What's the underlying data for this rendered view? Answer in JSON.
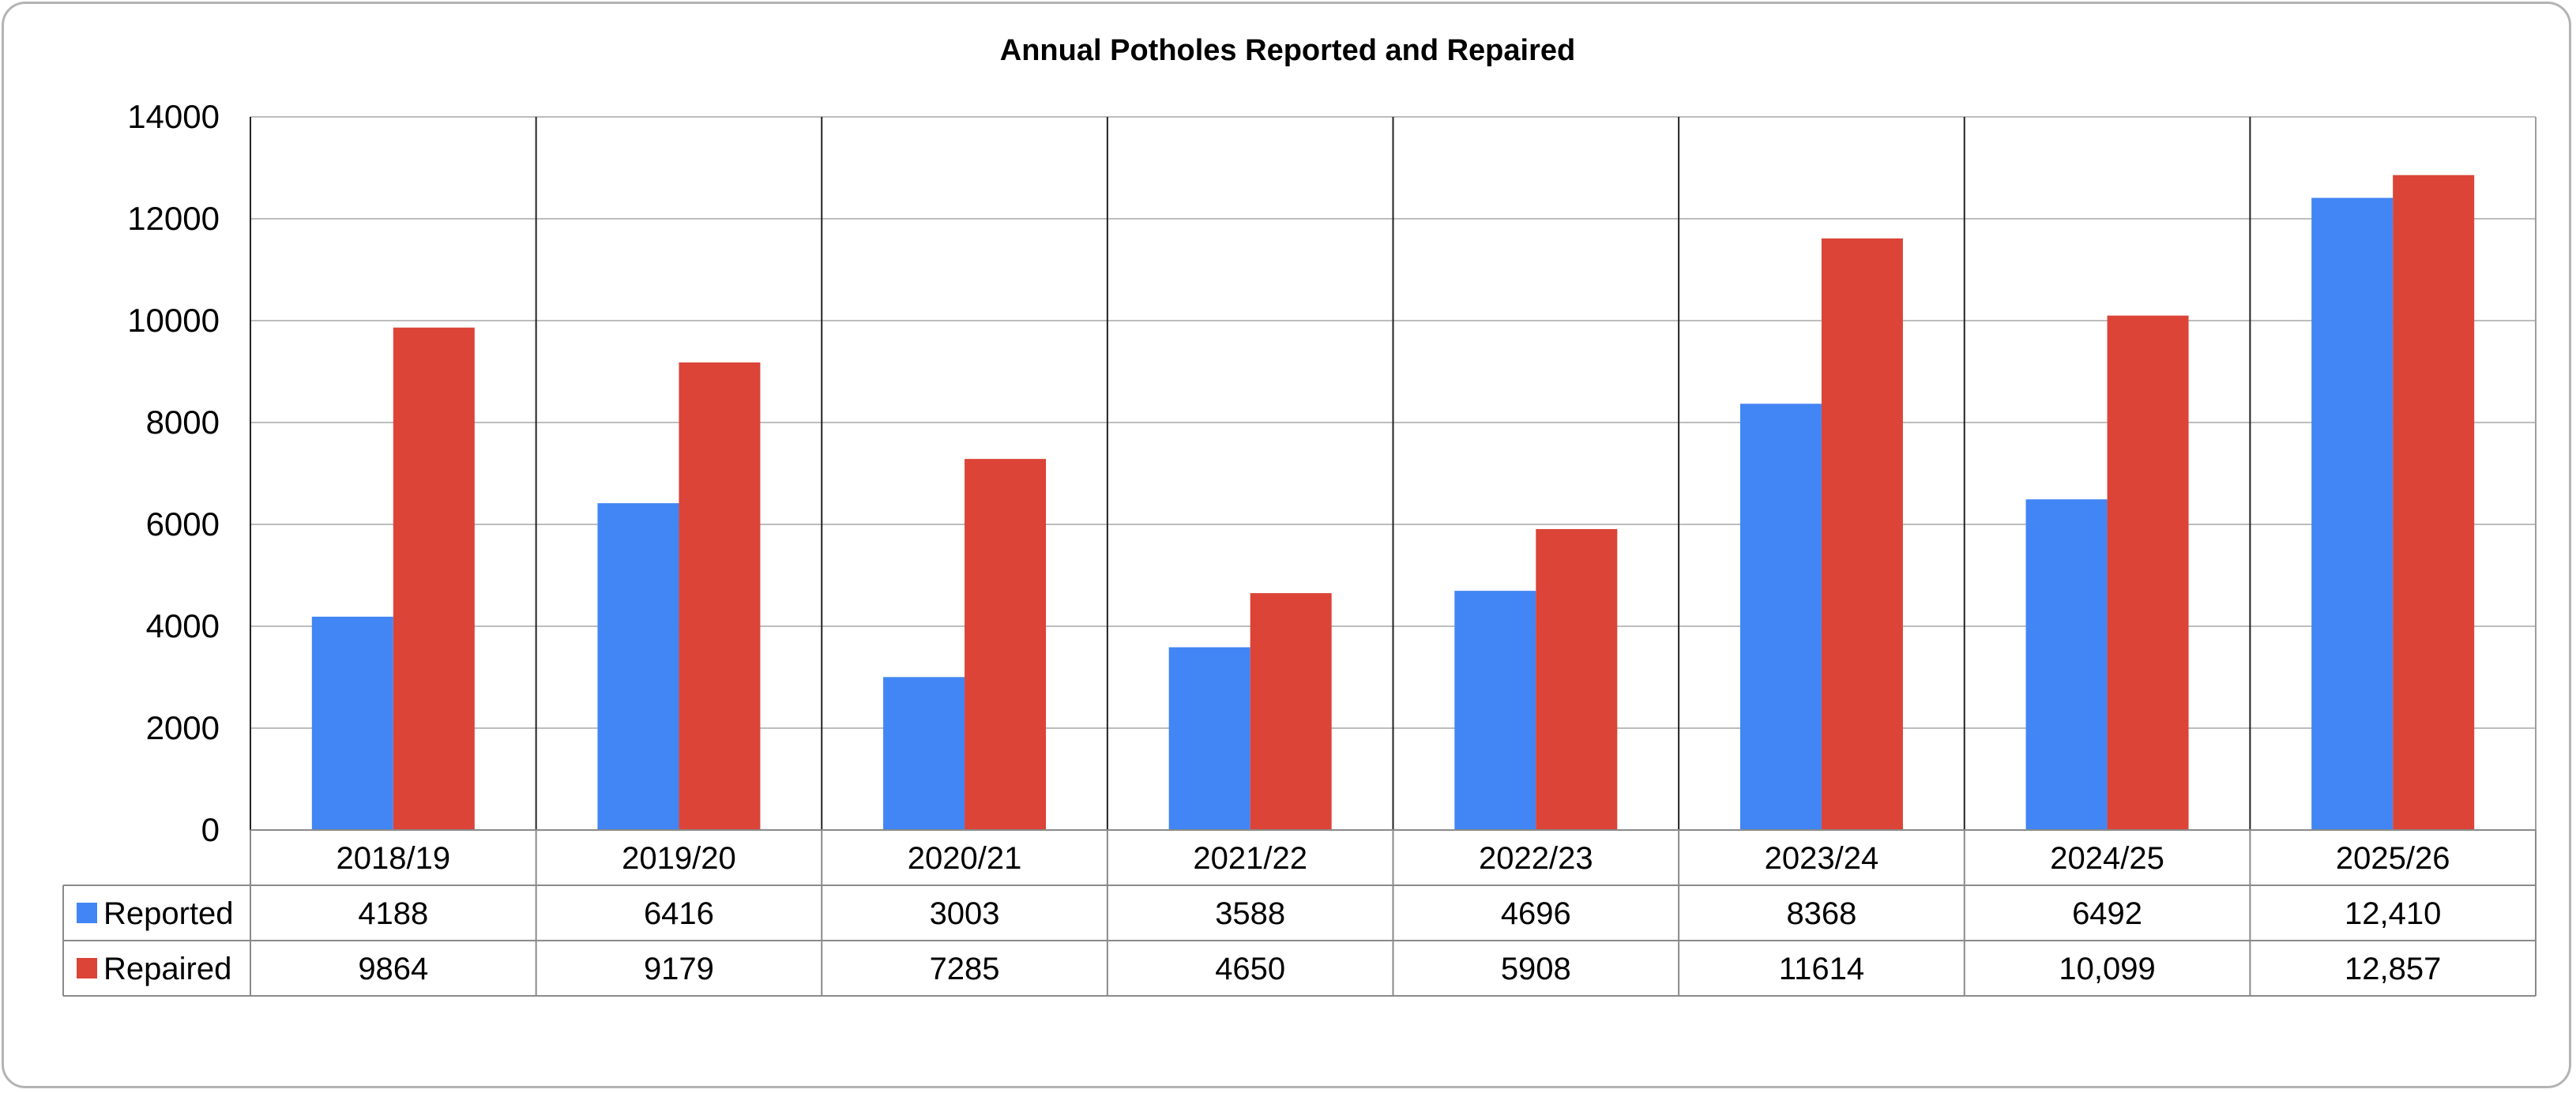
{
  "chart_data": {
    "type": "bar",
    "title": "Annual Potholes Reported and Repaired",
    "categories": [
      "2018/19",
      "2019/20",
      "2020/21",
      "2021/22",
      "2022/23",
      "2023/24",
      "2024/25",
      "2025/26"
    ],
    "series": [
      {
        "name": "Reported",
        "color": "#4285f4",
        "values": [
          4188,
          6416,
          3003,
          3588,
          4696,
          8368,
          6492,
          12410
        ],
        "table_labels": [
          "4188",
          "6416",
          "3003",
          "3588",
          "4696",
          "8368",
          "6492",
          "12,410"
        ]
      },
      {
        "name": "Repaired",
        "color": "#db4437",
        "values": [
          9864,
          9179,
          7285,
          4650,
          5908,
          11614,
          10099,
          12857
        ],
        "table_labels": [
          "9864",
          "9179",
          "7285",
          "4650",
          "5908",
          "11614",
          "10,099",
          "12,857"
        ]
      }
    ],
    "ylim": [
      0,
      14000
    ],
    "yticks": [
      0,
      2000,
      4000,
      6000,
      8000,
      10000,
      12000,
      14000
    ],
    "grid": true,
    "legend": "data-table-left"
  }
}
